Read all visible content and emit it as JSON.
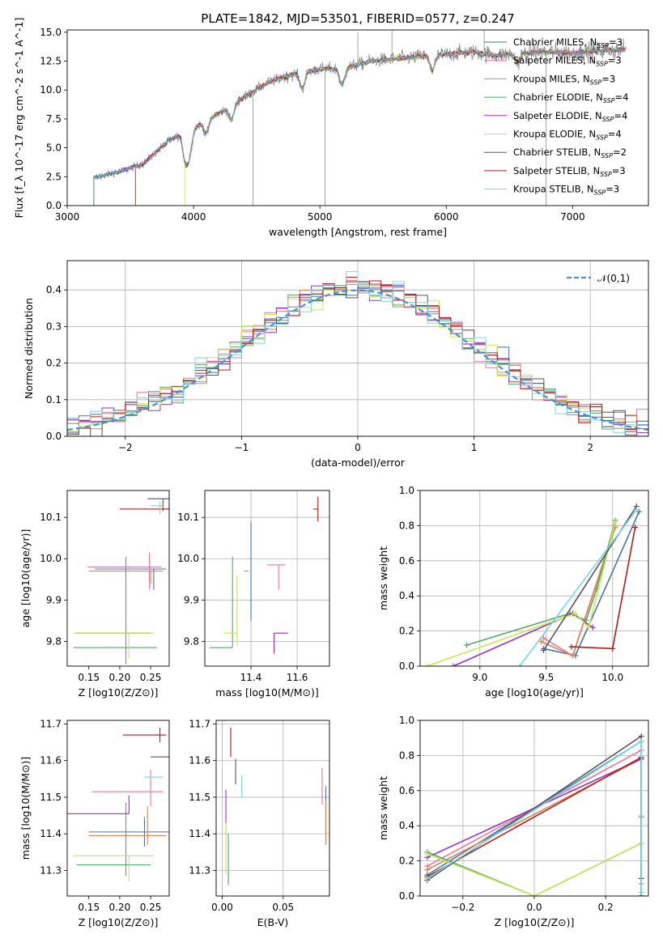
{
  "figure_title": "PLATE=1842, MJD=53501, FIBERID=0577, z=0.247",
  "models": [
    {
      "label": "Chabrier MILES, N$_{SSP}$=3",
      "name": "Chabrier MILES",
      "nssp": "3",
      "color": "#4c72b0"
    },
    {
      "label": "Salpeter MILES, N$_{SSP}$=3",
      "name": "Salpeter MILES",
      "nssp": "3",
      "color": "#e7799c"
    },
    {
      "label": "Kroupa MILES, N$_{SSP}$=3",
      "name": "Kroupa MILES",
      "nssp": "3",
      "color": "#dd8452"
    },
    {
      "label": "Chabrier ELODIE, N$_{SSP}$=4",
      "name": "Chabrier ELODIE",
      "nssp": "4",
      "color": "#55a868"
    },
    {
      "label": "Salpeter ELODIE, N$_{SSP}$=4",
      "name": "Salpeter ELODIE",
      "nssp": "4",
      "color": "#9b2fbf"
    },
    {
      "label": "Kroupa ELODIE, N$_{SSP}$=4",
      "name": "Kroupa ELODIE",
      "nssp": "4",
      "color": "#c8e65a"
    },
    {
      "label": "Chabrier STELIB, N$_{SSP}$=2",
      "name": "Chabrier STELIB",
      "nssp": "2",
      "color": "#555555"
    },
    {
      "label": "Salpeter STELIB, N$_{SSP}$=3",
      "name": "Salpeter STELIB",
      "nssp": "3",
      "color": "#b31b1b"
    },
    {
      "label": "Kroupa STELIB, N$_{SSP}$=3",
      "name": "Kroupa STELIB",
      "nssp": "3",
      "color": "#78d8e0"
    }
  ],
  "chart_data": [
    {
      "id": "spectrum",
      "type": "line",
      "title": "PLATE=1842, MJD=53501, FIBERID=0577, z=0.247",
      "xlabel": "wavelength [Angstrom, rest frame]",
      "ylabel": "Flux [f_λ 10^-17 erg cm^-2 s^-1 A^-1]",
      "xlim": [
        3000,
        7600
      ],
      "ylim": [
        0,
        15.2
      ],
      "xticks": [
        3000,
        4000,
        5000,
        6000,
        7000
      ],
      "yticks": [
        0.0,
        2.5,
        5.0,
        7.5,
        10.0,
        12.5,
        15.0
      ],
      "grid": false,
      "legend_location": "upper right",
      "observed_data_color": "#808080",
      "continuum_anchors": [
        [
          3210,
          2.4
        ],
        [
          3400,
          2.9
        ],
        [
          3600,
          3.6
        ],
        [
          3800,
          5.6
        ],
        [
          4000,
          6.7
        ],
        [
          4200,
          8.0
        ],
        [
          4400,
          9.4
        ],
        [
          4600,
          10.7
        ],
        [
          4800,
          11.4
        ],
        [
          5000,
          11.8
        ],
        [
          5200,
          11.9
        ],
        [
          5400,
          12.5
        ],
        [
          5600,
          12.7
        ],
        [
          5800,
          12.9
        ],
        [
          6000,
          13.1
        ],
        [
          6200,
          13.3
        ],
        [
          6400,
          13.0
        ],
        [
          6600,
          13.2
        ],
        [
          6800,
          13.3
        ],
        [
          7000,
          13.2
        ],
        [
          7200,
          13.4
        ],
        [
          7400,
          13.5
        ]
      ],
      "model_start_wavelengths": [
        3210,
        3210,
        3540,
        3210,
        3210,
        3930,
        3210,
        3540,
        3210
      ],
      "observed_spikes": [
        [
          4470,
          0
        ],
        [
          5040,
          0
        ],
        [
          5570,
          15.2
        ],
        [
          6790,
          0
        ],
        [
          6300,
          15.2
        ],
        [
          5300,
          15.0
        ]
      ]
    },
    {
      "id": "residuals",
      "type": "histogram",
      "xlabel": "(data-model)/error",
      "ylabel": "Normed distribution",
      "xlim": [
        -2.5,
        2.5
      ],
      "ylim": [
        0,
        0.48
      ],
      "xticks": [
        -2,
        -1,
        0,
        1,
        2
      ],
      "yticks": [
        0.0,
        0.1,
        0.2,
        0.3,
        0.4
      ],
      "grid": true,
      "legend": "𝒩(0,1)",
      "legend_location": "upper right",
      "reference_curve": {
        "name": "𝒩(0,1)",
        "mean": 0,
        "sigma": 1,
        "color": "#4a90d9"
      },
      "bins": {
        "start": -2.5,
        "width": 0.1,
        "count": 50
      }
    },
    {
      "id": "age_vs_Z",
      "type": "errorbar",
      "xlabel": "Z [log10(Z/Z⊙)]",
      "ylabel": "age [log10(age/yr)]",
      "xlim": [
        0.115,
        0.28
      ],
      "ylim": [
        9.74,
        10.165
      ],
      "xticks": [
        0.15,
        0.2,
        0.25
      ],
      "xticklabels": [
        "0.15",
        "0.20",
        "0.25"
      ],
      "yticks": [
        9.8,
        9.9,
        10.0,
        10.1
      ],
      "grid": false,
      "points": [
        {
          "model": 0,
          "x": 0.255,
          "y": 9.975,
          "xerr": [
            0.095,
            0.02
          ],
          "yerr": [
            0.05,
            0.0
          ]
        },
        {
          "model": 1,
          "x": 0.248,
          "y": 9.98,
          "xerr": [
            0.1,
            0.02
          ],
          "yerr": [
            0.055,
            0.035
          ]
        },
        {
          "model": 2,
          "x": 0.25,
          "y": 9.97,
          "xerr": [
            0.1,
            0.02
          ],
          "yerr": [
            0.03,
            0.0
          ]
        },
        {
          "model": 3,
          "x": 0.21,
          "y": 9.785,
          "xerr": [
            0.085,
            0.05
          ],
          "yerr": [
            0.04,
            0.22
          ]
        },
        {
          "model": 4,
          "x": 0.25,
          "y": 9.82,
          "xerr": [
            0.12,
            0.0
          ],
          "yerr": [
            0.0,
            0.0
          ]
        },
        {
          "model": 5,
          "x": 0.215,
          "y": 9.82,
          "xerr": [
            0.09,
            0.04
          ],
          "yerr": [
            0.06,
            0.0
          ]
        },
        {
          "model": 6,
          "x": 0.27,
          "y": 10.145,
          "xerr": [
            0.025,
            0.01
          ],
          "yerr": [
            0.03,
            0.0
          ]
        },
        {
          "model": 7,
          "x": 0.26,
          "y": 10.12,
          "xerr": [
            0.06,
            0.02
          ],
          "yerr": [
            0.0,
            0.0
          ]
        },
        {
          "model": 8,
          "x": 0.265,
          "y": 10.128,
          "xerr": [
            0.015,
            0.005
          ],
          "yerr": [
            0.02,
            0.01
          ]
        }
      ]
    },
    {
      "id": "age_vs_mass",
      "type": "errorbar",
      "xlabel": "mass [log10(M/M⊙)]",
      "ylabel": "",
      "xlim": [
        11.2,
        11.74
      ],
      "ylim": [
        9.74,
        10.165
      ],
      "xticks": [
        11.4,
        11.6
      ],
      "yticks": [
        9.8,
        9.9,
        10.0,
        10.1
      ],
      "grid": true,
      "points": [
        {
          "model": 0,
          "x": 11.4,
          "y": 9.97,
          "xerr": [
            0.0,
            0.0
          ],
          "yerr": [
            0.12,
            0.12
          ]
        },
        {
          "model": 1,
          "x": 11.52,
          "y": 9.985,
          "xerr": [
            0.05,
            0.03
          ],
          "yerr": [
            0.06,
            0.0
          ]
        },
        {
          "model": 2,
          "x": 11.39,
          "y": 9.97,
          "xerr": [
            0.02,
            0.0
          ],
          "yerr": [
            0.0,
            0.0
          ]
        },
        {
          "model": 3,
          "x": 11.32,
          "y": 9.785,
          "xerr": [
            0.1,
            0.0
          ],
          "yerr": [
            0.0,
            0.22
          ]
        },
        {
          "model": 4,
          "x": 11.5,
          "y": 9.82,
          "xerr": [
            0.0,
            0.06
          ],
          "yerr": [
            0.05,
            0.0
          ]
        },
        {
          "model": 5,
          "x": 11.34,
          "y": 9.82,
          "xerr": [
            0.06,
            0.0
          ],
          "yerr": [
            0.03,
            0.14
          ]
        },
        {
          "model": 6,
          "x": 11.6,
          "y": 10.145,
          "xerr": [
            0.0,
            0.0
          ],
          "yerr": [
            0.0,
            0.0
          ]
        },
        {
          "model": 7,
          "x": 11.69,
          "y": 10.12,
          "xerr": [
            0.02,
            0.0
          ],
          "yerr": [
            0.03,
            0.03
          ]
        },
        {
          "model": 8,
          "x": 11.56,
          "y": 10.135,
          "xerr": [
            0.0,
            0.0
          ],
          "yerr": [
            0.0,
            0.0
          ]
        }
      ]
    },
    {
      "id": "massweight_vs_age",
      "type": "line",
      "xlabel": "age [log10(age/yr)]",
      "ylabel": "mass weight",
      "xlim": [
        8.55,
        10.27
      ],
      "ylim": [
        0,
        1.0
      ],
      "xticks": [
        9.0,
        9.5,
        10.0
      ],
      "yticks": [
        0.0,
        0.2,
        0.4,
        0.6,
        0.8,
        1.0
      ],
      "grid": true,
      "series": [
        {
          "model": 0,
          "x": [
            9.48,
            9.72,
            10.2
          ],
          "y": [
            0.1,
            0.06,
            0.88
          ]
        },
        {
          "model": 1,
          "x": [
            9.48,
            9.7,
            10.02
          ],
          "y": [
            0.16,
            0.06,
            0.8
          ]
        },
        {
          "model": 2,
          "x": [
            9.46,
            9.7,
            10.02
          ],
          "y": [
            0.14,
            0.06,
            0.79
          ]
        },
        {
          "model": 3,
          "x": [
            8.9,
            9.68,
            9.8,
            9.88,
            10.02
          ],
          "y": [
            0.12,
            0.3,
            0.26,
            0.44,
            0.83
          ]
        },
        {
          "model": 4,
          "x": [
            8.8,
            9.7,
            9.85
          ],
          "y": [
            0.0,
            0.3,
            0.22
          ]
        },
        {
          "model": 5,
          "x": [
            8.6,
            9.72,
            9.82,
            10.02
          ],
          "y": [
            0.0,
            0.3,
            0.22,
            0.82
          ]
        },
        {
          "model": 6,
          "x": [
            9.48,
            10.18
          ],
          "y": [
            0.09,
            0.91
          ]
        },
        {
          "model": 7,
          "x": [
            9.69,
            10.0,
            10.17
          ],
          "y": [
            0.11,
            0.1,
            0.79
          ]
        },
        {
          "model": 8,
          "x": [
            9.3,
            10.18
          ],
          "y": [
            0.0,
            0.89
          ]
        }
      ]
    },
    {
      "id": "mass_vs_Z",
      "type": "errorbar",
      "xlabel": "Z [log10(Z/Z⊙)]",
      "ylabel": "mass [log10(M/M⊙)]",
      "xlim": [
        0.115,
        0.28
      ],
      "ylim": [
        11.23,
        11.71
      ],
      "xticks": [
        0.15,
        0.2,
        0.25
      ],
      "xticklabels": [
        "0.15",
        "0.20",
        "0.25"
      ],
      "yticks": [
        11.3,
        11.4,
        11.5,
        11.6,
        11.7
      ],
      "grid": false,
      "points": [
        {
          "model": 0,
          "x": 0.24,
          "y": 11.405,
          "xerr": [
            0.09,
            0.04
          ],
          "yerr": [
            0.04,
            0.04
          ]
        },
        {
          "model": 1,
          "x": 0.25,
          "y": 11.515,
          "xerr": [
            0.095,
            0.02
          ],
          "yerr": [
            0.04,
            0.06
          ]
        },
        {
          "model": 2,
          "x": 0.245,
          "y": 11.395,
          "xerr": [
            0.095,
            0.03
          ],
          "yerr": [
            0.025,
            0.08
          ]
        },
        {
          "model": 3,
          "x": 0.21,
          "y": 11.315,
          "xerr": [
            0.08,
            0.04
          ],
          "yerr": [
            0.03,
            0.17
          ]
        },
        {
          "model": 4,
          "x": 0.215,
          "y": 11.455,
          "xerr": [
            0.1,
            0.0
          ],
          "yerr": [
            0.0,
            0.05
          ]
        },
        {
          "model": 5,
          "x": 0.215,
          "y": 11.34,
          "xerr": [
            0.09,
            0.04
          ],
          "yerr": [
            0.07,
            0.0
          ]
        },
        {
          "model": 6,
          "x": 0.27,
          "y": 11.61,
          "xerr": [
            0.02,
            0.01
          ],
          "yerr": [
            0.0,
            0.0
          ]
        },
        {
          "model": 7,
          "x": 0.265,
          "y": 11.67,
          "xerr": [
            0.06,
            0.01
          ],
          "yerr": [
            0.02,
            0.02
          ]
        },
        {
          "model": 8,
          "x": 0.26,
          "y": 11.555,
          "xerr": [
            0.02,
            0.01
          ],
          "yerr": [
            0.0,
            0.0
          ]
        }
      ]
    },
    {
      "id": "mass_vs_ebv",
      "type": "errorbar",
      "xlabel": "E(B-V)",
      "ylabel": "",
      "xlim": [
        -0.005,
        0.088
      ],
      "ylim": [
        11.23,
        11.71
      ],
      "xticks": [
        0.0,
        0.05
      ],
      "xticklabels": [
        "0.00",
        "0.05"
      ],
      "yticks": [
        11.3,
        11.4,
        11.5,
        11.6,
        11.7
      ],
      "grid": true,
      "points": [
        {
          "model": 0,
          "x": 0.085,
          "y": 11.47,
          "xerr": [
            0,
            0
          ],
          "yerr": [
            0.06,
            0.06
          ]
        },
        {
          "model": 1,
          "x": 0.082,
          "y": 11.53,
          "xerr": [
            0,
            0
          ],
          "yerr": [
            0.05,
            0.05
          ]
        },
        {
          "model": 2,
          "x": 0.085,
          "y": 11.43,
          "xerr": [
            0,
            0
          ],
          "yerr": [
            0.06,
            0.06
          ]
        },
        {
          "model": 3,
          "x": 0.005,
          "y": 11.33,
          "xerr": [
            0,
            0
          ],
          "yerr": [
            0.07,
            0.07
          ]
        },
        {
          "model": 4,
          "x": 0.003,
          "y": 11.46,
          "xerr": [
            0,
            0
          ],
          "yerr": [
            0.06,
            0.06
          ]
        },
        {
          "model": 5,
          "x": 0.003,
          "y": 11.36,
          "xerr": [
            0,
            0
          ],
          "yerr": [
            0.07,
            0.07
          ]
        },
        {
          "model": 6,
          "x": 0.011,
          "y": 11.57,
          "xerr": [
            0,
            0
          ],
          "yerr": [
            0.035,
            0.035
          ]
        },
        {
          "model": 7,
          "x": 0.007,
          "y": 11.65,
          "xerr": [
            0,
            0
          ],
          "yerr": [
            0.04,
            0.04
          ]
        },
        {
          "model": 8,
          "x": 0.016,
          "y": 11.53,
          "xerr": [
            0,
            0
          ],
          "yerr": [
            0.03,
            0.03
          ]
        }
      ]
    },
    {
      "id": "massweight_vs_Z",
      "type": "line",
      "xlabel": "Z [log10(Z/Z⊙)]",
      "ylabel": "mass weight",
      "xlim": [
        -0.32,
        0.32
      ],
      "ylim": [
        0,
        1.0
      ],
      "xticks": [
        -0.2,
        0.0,
        0.2
      ],
      "xticklabels": [
        "−0.2",
        "0.0",
        "0.2"
      ],
      "yticks": [
        0.0,
        0.2,
        0.4,
        0.6,
        0.8,
        1.0
      ],
      "grid": true,
      "series": [
        {
          "model": 0,
          "x": [
            -0.3,
            0.3,
            0.3
          ],
          "y": [
            0.12,
            0.88,
            0.0
          ]
        },
        {
          "model": 1,
          "x": [
            -0.3,
            0.3,
            0.3
          ],
          "y": [
            0.17,
            0.83,
            0.0
          ]
        },
        {
          "model": 2,
          "x": [
            -0.3,
            0.3,
            0.3
          ],
          "y": [
            0.15,
            0.78,
            0.07
          ]
        },
        {
          "model": 3,
          "x": [
            -0.3,
            0.0,
            0.3,
            0.3
          ],
          "y": [
            0.25,
            0.0,
            0.3,
            0.45
          ]
        },
        {
          "model": 4,
          "x": [
            -0.3,
            0.3,
            0.3
          ],
          "y": [
            0.22,
            0.78,
            0.0
          ]
        },
        {
          "model": 5,
          "x": [
            -0.3,
            0.0,
            0.3,
            0.3
          ],
          "y": [
            0.24,
            0.0,
            0.3,
            0.46
          ]
        },
        {
          "model": 6,
          "x": [
            -0.3,
            0.3,
            0.3
          ],
          "y": [
            0.09,
            0.91,
            0.0
          ]
        },
        {
          "model": 7,
          "x": [
            -0.3,
            0.3,
            0.3
          ],
          "y": [
            0.11,
            0.79,
            0.1
          ]
        },
        {
          "model": 8,
          "x": [
            -0.3,
            0.3,
            0.3
          ],
          "y": [
            0.1,
            0.88,
            0.02
          ]
        }
      ]
    }
  ]
}
